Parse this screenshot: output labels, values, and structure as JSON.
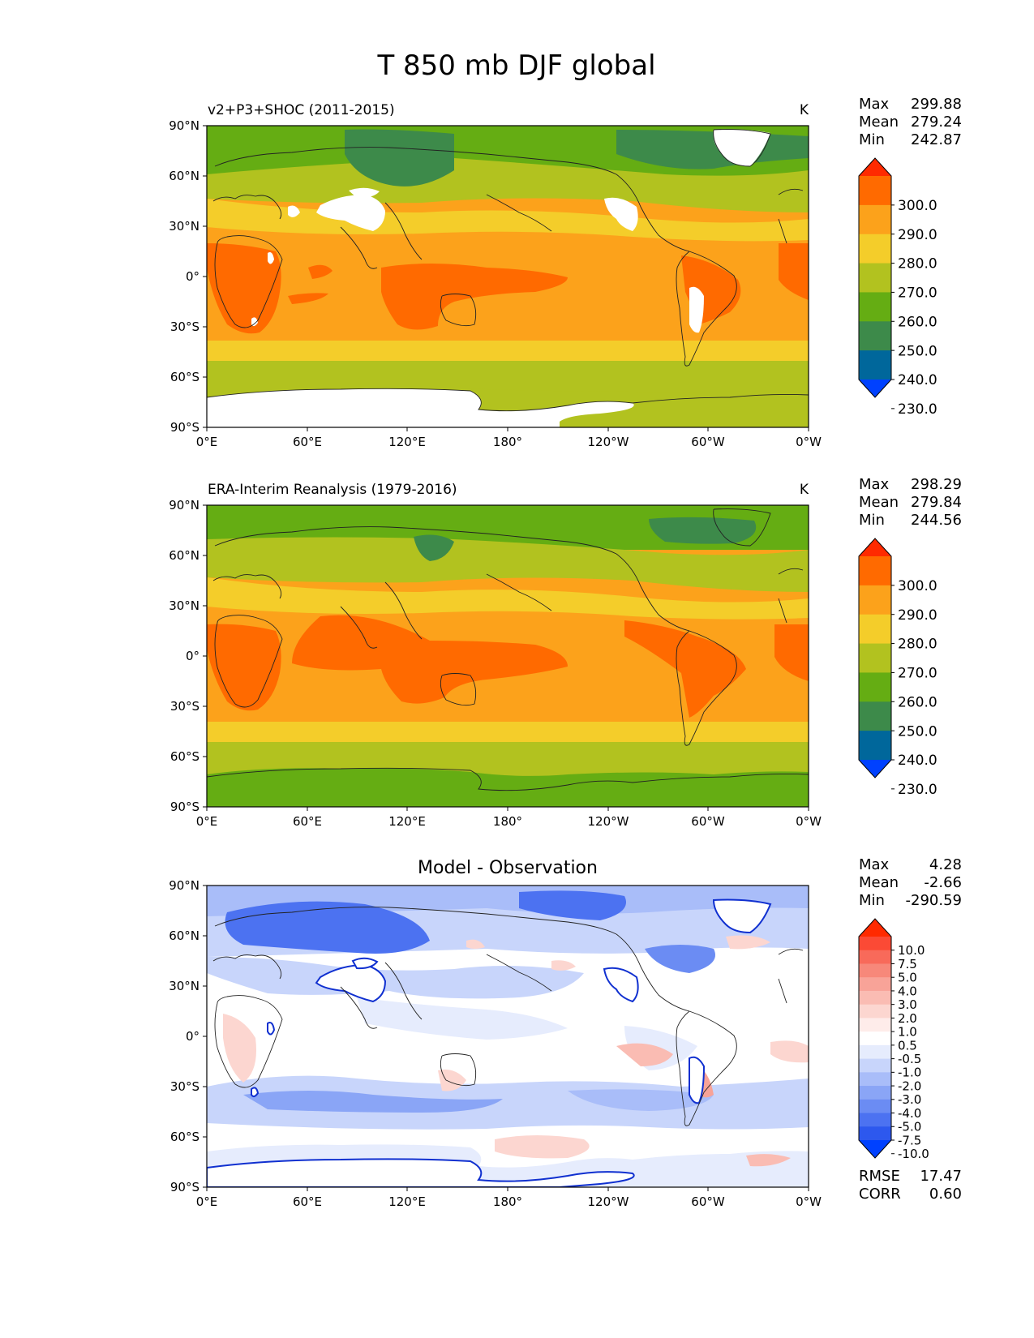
{
  "title": "T 850 mb DJF global",
  "units": "K",
  "lat_ticks": [
    "90°N",
    "60°N",
    "30°N",
    "0°",
    "30°S",
    "60°S",
    "90°S"
  ],
  "lon_ticks": [
    "0°E",
    "60°E",
    "120°E",
    "180°",
    "120°W",
    "60°W",
    "0°W"
  ],
  "stat_labels": {
    "max": "Max",
    "mean": "Mean",
    "min": "Min",
    "rmse": "RMSE",
    "corr": "CORR"
  },
  "colors": {
    "missing": "#ffffff",
    "coast": "#222222",
    "land_mask_outline": "#1030d0"
  },
  "panels": [
    {
      "subtitle": "v2+P3+SHOC (2011-2015)",
      "units": "K",
      "stats": {
        "max": "299.88",
        "mean": "279.24",
        "min": "242.87"
      },
      "colorbar_labels": [
        "300.0",
        "290.0",
        "280.0",
        "270.0",
        "260.0",
        "250.0",
        "240.0",
        "230.0"
      ],
      "colorbar_colors": [
        "#ff2a00",
        "#ff6a00",
        "#fca21b",
        "#f4cd2a",
        "#b2c21f",
        "#65ad13",
        "#3d8a4a",
        "#00679b",
        "#0041ff"
      ]
    },
    {
      "subtitle": "ERA-Interim Reanalysis (1979-2016)",
      "units": "K",
      "stats": {
        "max": "298.29",
        "mean": "279.84",
        "min": "244.56"
      },
      "colorbar_labels": [
        "300.0",
        "290.0",
        "280.0",
        "270.0",
        "260.0",
        "250.0",
        "240.0",
        "230.0"
      ],
      "colorbar_colors": [
        "#ff2a00",
        "#ff6a00",
        "#fca21b",
        "#f4cd2a",
        "#b2c21f",
        "#65ad13",
        "#3d8a4a",
        "#00679b",
        "#0041ff"
      ]
    },
    {
      "title": "Model - Observation",
      "stats": {
        "max": "4.28",
        "mean": "-2.66",
        "min": "-290.59"
      },
      "colorbar_labels": [
        "10.0",
        "7.5",
        "5.0",
        "4.0",
        "3.0",
        "2.0",
        "1.0",
        "0.5",
        "-0.5",
        "-1.0",
        "-2.0",
        "-3.0",
        "-4.0",
        "-5.0",
        "-7.5",
        "-10.0"
      ],
      "colorbar_colors": [
        "#ff2a00",
        "#fb4a35",
        "#f86a5a",
        "#f7887a",
        "#f8a398",
        "#fabcb3",
        "#fcd6d0",
        "#feecea",
        "#ffffff",
        "#e6ecfd",
        "#c8d5fb",
        "#a9bdf9",
        "#8aa5f6",
        "#6b8cf3",
        "#4c72f1",
        "#2d58ee",
        "#0041ff"
      ],
      "rmse": "17.47",
      "corr": "0.60"
    }
  ]
}
